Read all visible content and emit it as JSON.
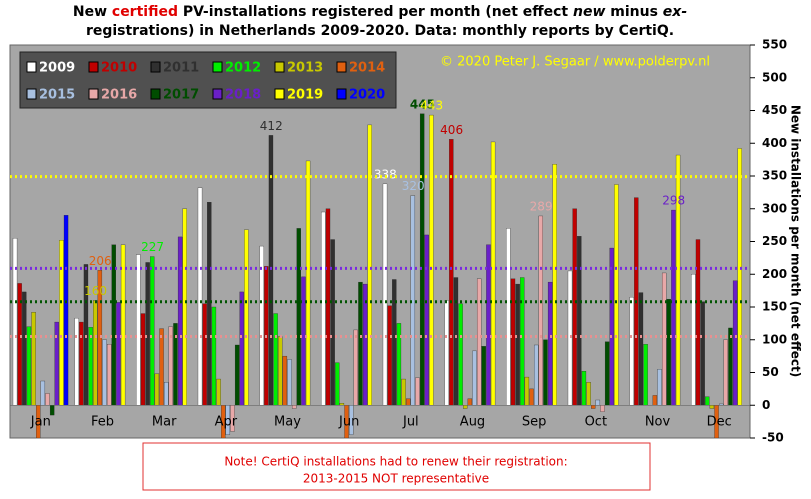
{
  "chart_data": {
    "type": "bar",
    "title": [
      "New ",
      "certified",
      " PV-installations registered per month (net effect ",
      "new",
      " minus ",
      "ex-",
      "registrations) in Netherlands 2009-2020. Data: monthly reports by CertiQ."
    ],
    "credit": "© 2020 Peter J. Segaar / www.polderpv.nl",
    "y_label": "New installations per month (net effect)",
    "note": [
      "Note! CertiQ installations  had to renew their registration:",
      "2013-2015  NOT representative"
    ],
    "categories": [
      "Jan",
      "Feb",
      "Mar",
      "Apr",
      "May",
      "Jun",
      "Jul",
      "Aug",
      "Sep",
      "Oct",
      "Nov",
      "Dec"
    ],
    "ylim": [
      -50,
      550
    ],
    "yticks": [
      -50,
      0,
      50,
      100,
      150,
      200,
      250,
      300,
      350,
      400,
      450,
      500,
      550
    ],
    "series": [
      {
        "name": "2009",
        "color": "#ffffff",
        "max_label": true,
        "values": [
          255,
          133,
          230,
          332,
          243,
          295,
          338,
          160,
          270,
          205,
          165,
          200
        ]
      },
      {
        "name": "2010",
        "color": "#c00000",
        "max_label": true,
        "values": [
          186,
          127,
          140,
          155,
          212,
          300,
          152,
          406,
          193,
          300,
          317,
          253
        ]
      },
      {
        "name": "2011",
        "color": "#303030",
        "max_label": true,
        "values": [
          173,
          215,
          218,
          310,
          412,
          253,
          192,
          195,
          185,
          258,
          172,
          158
        ]
      },
      {
        "name": "2012",
        "color": "#00ee00",
        "max_label": true,
        "values": [
          120,
          119,
          227,
          150,
          140,
          65,
          125,
          155,
          195,
          52,
          93,
          13
        ]
      },
      {
        "name": "2013",
        "color": "#c8c800",
        "max_label": true,
        "values": [
          142,
          160,
          48,
          40,
          105,
          3,
          40,
          -5,
          43,
          35,
          0,
          -5
        ]
      },
      {
        "name": "2014",
        "color": "#e06010",
        "max_label": true,
        "values": [
          -50,
          206,
          117,
          -50,
          75,
          -50,
          10,
          10,
          25,
          -5,
          15,
          -50
        ]
      },
      {
        "name": "2015",
        "color": "#a8c0e0",
        "max_label": true,
        "values": [
          37,
          100,
          35,
          -45,
          70,
          -45,
          320,
          83,
          92,
          8,
          55,
          2
        ]
      },
      {
        "name": "2016",
        "color": "#e8a8a8",
        "max_label": true,
        "values": [
          18,
          93,
          120,
          -40,
          -5,
          115,
          42,
          193,
          289,
          -10,
          202,
          100
        ]
      },
      {
        "name": "2017",
        "color": "#004d00",
        "max_label": true,
        "values": [
          -15,
          245,
          125,
          92,
          270,
          188,
          445,
          90,
          100,
          97,
          162,
          118
        ]
      },
      {
        "name": "2018",
        "color": "#6a1fc8",
        "max_label": true,
        "values": [
          127,
          157,
          257,
          173,
          196,
          185,
          260,
          245,
          188,
          240,
          298,
          190
        ]
      },
      {
        "name": "2019",
        "color": "#ffff00",
        "max_label": true,
        "values": [
          252,
          245,
          300,
          268,
          373,
          428,
          443,
          402,
          368,
          337,
          382,
          392
        ]
      },
      {
        "name": "2020",
        "color": "#0000ff",
        "max_label": false,
        "values": [
          290,
          null,
          null,
          null,
          null,
          null,
          null,
          null,
          null,
          null,
          null,
          null
        ]
      }
    ],
    "reference_lines": [
      {
        "value": 349,
        "color": "#ffff00"
      },
      {
        "value": 209,
        "color": "#7a2ae0"
      },
      {
        "value": 158,
        "color": "#005500"
      },
      {
        "value": 105,
        "color": "#e89090"
      }
    ]
  }
}
